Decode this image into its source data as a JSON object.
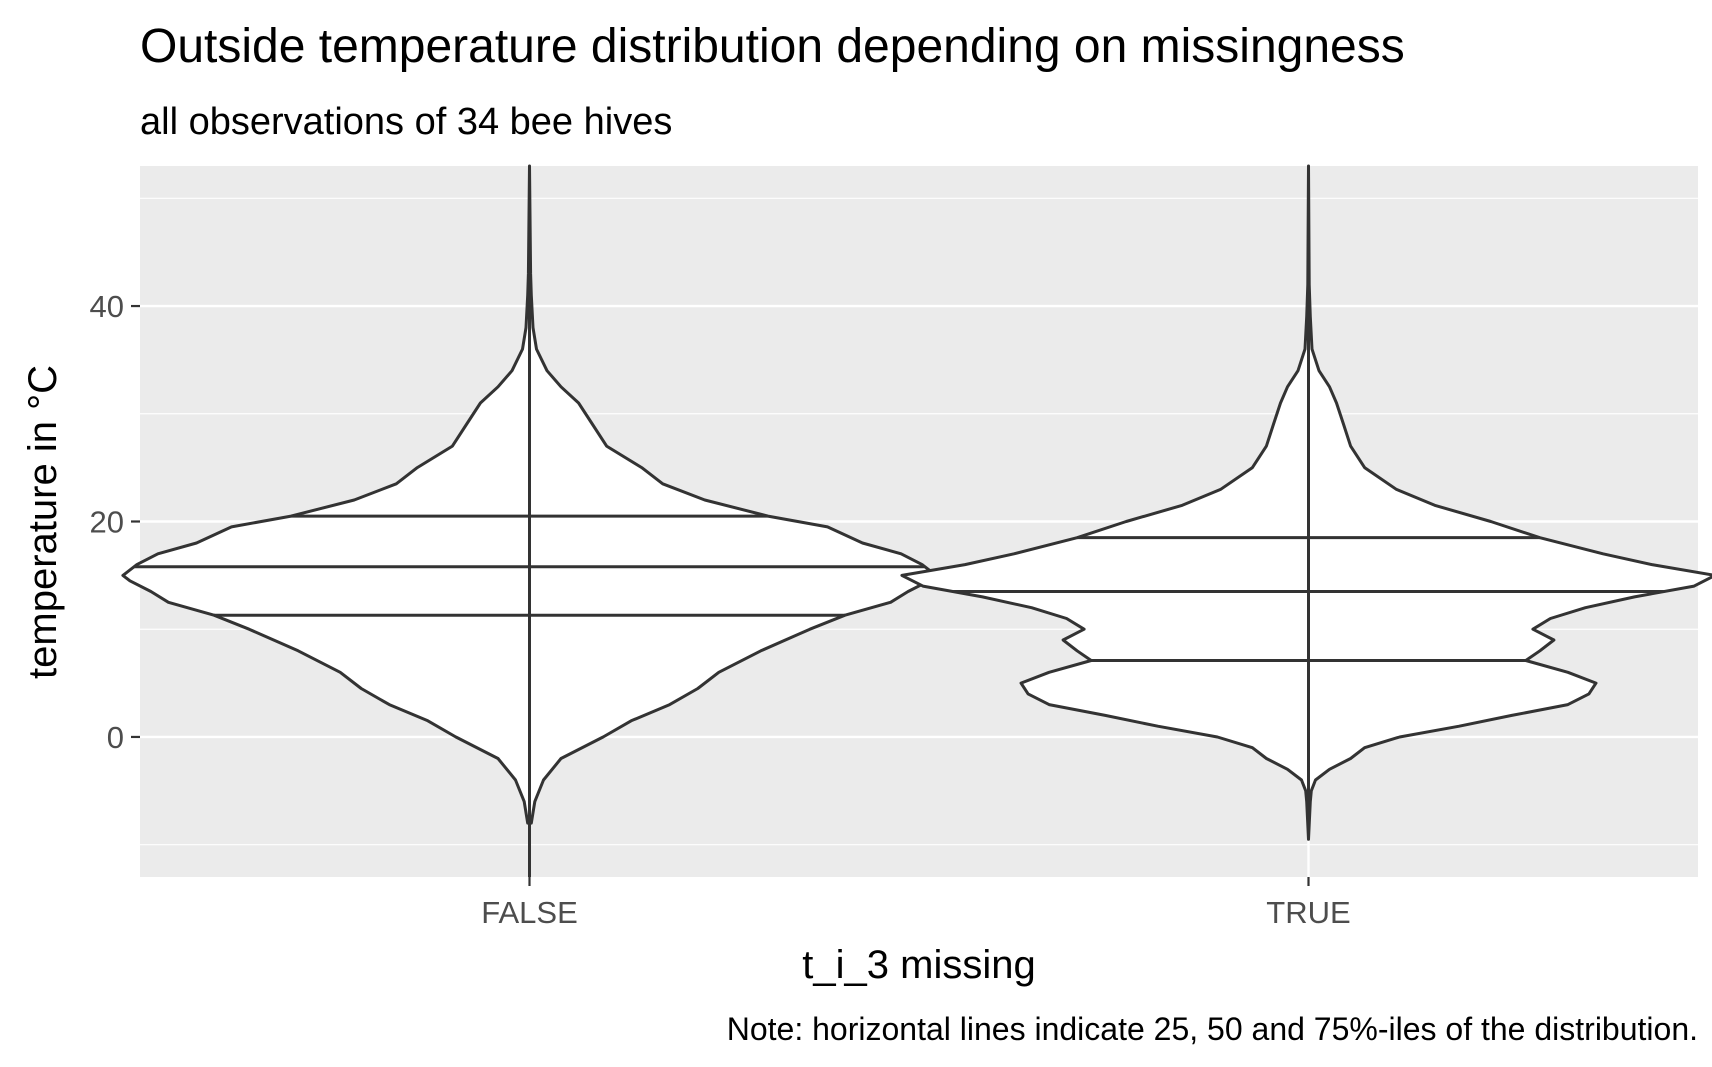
{
  "chart_data": {
    "type": "violin",
    "title": "Outside temperature distribution depending on missingness",
    "subtitle": "all observations of 34 bee hives",
    "xlabel": "t_i_3 missing",
    "ylabel": "temperature in °C",
    "caption": "Note: horizontal lines indicate 25, 50 and 75%-iles of the distribution.",
    "categories": [
      "FALSE",
      "TRUE"
    ],
    "ylim": [
      -13,
      53
    ],
    "y_ticks": [
      0,
      20,
      40
    ],
    "y_minor_ticks": [
      -10,
      10,
      30,
      50
    ],
    "grid": true,
    "legend": "none",
    "colors": {
      "panel_background": "#ebebeb",
      "grid": "#ffffff",
      "violin_fill": "#ffffff",
      "violin_stroke": "#333333",
      "title_text": "#000000",
      "tick_text": "#4d4d4d"
    },
    "series": [
      {
        "category": "FALSE",
        "y_min": -13.5,
        "y_max": 53,
        "quantiles": {
          "q25": 11.3,
          "q50": 15.8,
          "q75": 20.5
        },
        "density": [
          [
            -13.5,
            0.0
          ],
          [
            -8.0,
            0.005
          ],
          [
            -6.0,
            0.015
          ],
          [
            -4.0,
            0.04
          ],
          [
            -2.0,
            0.09
          ],
          [
            0.0,
            0.21
          ],
          [
            1.5,
            0.29
          ],
          [
            3.0,
            0.4
          ],
          [
            4.5,
            0.48
          ],
          [
            6.0,
            0.54
          ],
          [
            8.0,
            0.66
          ],
          [
            10.0,
            0.8
          ],
          [
            11.3,
            0.9
          ],
          [
            12.5,
            1.03
          ],
          [
            13.5,
            1.08
          ],
          [
            14.5,
            1.14
          ],
          [
            15.0,
            1.16
          ],
          [
            16.0,
            1.12
          ],
          [
            17.0,
            1.06
          ],
          [
            18.0,
            0.95
          ],
          [
            19.5,
            0.85
          ],
          [
            20.5,
            0.68
          ],
          [
            22.0,
            0.5
          ],
          [
            23.5,
            0.38
          ],
          [
            25.0,
            0.32
          ],
          [
            27.0,
            0.22
          ],
          [
            29.0,
            0.18
          ],
          [
            31.0,
            0.14
          ],
          [
            32.5,
            0.09
          ],
          [
            34.0,
            0.05
          ],
          [
            36.0,
            0.02
          ],
          [
            38.0,
            0.01
          ],
          [
            41.0,
            0.005
          ],
          [
            43.0,
            0.003
          ],
          [
            53.0,
            0.0
          ]
        ]
      },
      {
        "category": "TRUE",
        "y_min": -9.5,
        "y_max": 53,
        "quantiles": {
          "q25": 7.1,
          "q50": 13.5,
          "q75": 18.5
        },
        "density": [
          [
            -9.5,
            0.0
          ],
          [
            -6.0,
            0.005
          ],
          [
            -5.0,
            0.008
          ],
          [
            -4.0,
            0.02
          ],
          [
            -3.0,
            0.06
          ],
          [
            -2.0,
            0.12
          ],
          [
            -1.0,
            0.16
          ],
          [
            0.0,
            0.26
          ],
          [
            1.0,
            0.43
          ],
          [
            2.0,
            0.58
          ],
          [
            3.0,
            0.74
          ],
          [
            4.0,
            0.8
          ],
          [
            5.0,
            0.82
          ],
          [
            6.0,
            0.74
          ],
          [
            7.1,
            0.62
          ],
          [
            8.0,
            0.66
          ],
          [
            9.0,
            0.7
          ],
          [
            10.0,
            0.64
          ],
          [
            11.0,
            0.69
          ],
          [
            12.0,
            0.79
          ],
          [
            13.0,
            0.93
          ],
          [
            14.0,
            1.1
          ],
          [
            15.0,
            1.16
          ],
          [
            16.0,
            0.98
          ],
          [
            17.0,
            0.84
          ],
          [
            18.5,
            0.66
          ],
          [
            20.0,
            0.52
          ],
          [
            21.5,
            0.36
          ],
          [
            23.0,
            0.25
          ],
          [
            25.0,
            0.16
          ],
          [
            27.0,
            0.12
          ],
          [
            29.0,
            0.1
          ],
          [
            31.0,
            0.08
          ],
          [
            32.5,
            0.06
          ],
          [
            34.0,
            0.03
          ],
          [
            36.0,
            0.01
          ],
          [
            39.0,
            0.005
          ],
          [
            42.0,
            0.002
          ],
          [
            53.0,
            0.0
          ]
        ]
      }
    ]
  }
}
